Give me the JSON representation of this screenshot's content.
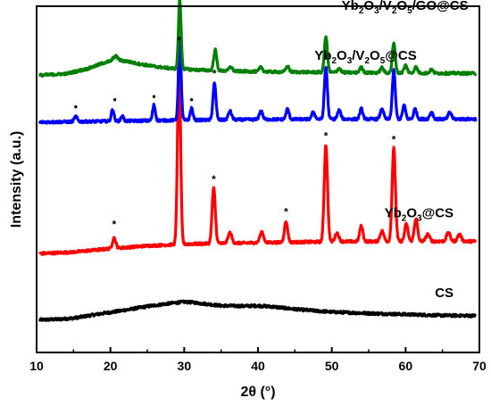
{
  "chart_data": {
    "type": "line",
    "xlabel": "2θ (°)",
    "ylabel": "Intensity (a.u.)",
    "xlim": [
      10,
      70
    ],
    "xticks": [
      "10",
      "20",
      "30",
      "40",
      "50",
      "60",
      "70"
    ],
    "ylim": [
      0,
      100
    ],
    "y_ticks_shown": false,
    "grid": false,
    "series": [
      {
        "name": "CS",
        "label_parts": [
          {
            "t": "CS"
          }
        ],
        "color": "#000000",
        "baseline": 10,
        "points": [
          [
            10,
            9.4
          ],
          [
            13,
            9.6
          ],
          [
            15,
            9.9
          ],
          [
            17,
            10.6
          ],
          [
            19,
            11.3
          ],
          [
            21,
            11.9
          ],
          [
            23,
            12.6
          ],
          [
            25,
            13.3
          ],
          [
            27,
            13.9
          ],
          [
            29,
            14.4
          ],
          [
            30,
            14.6
          ],
          [
            31,
            14.5
          ],
          [
            33,
            14.0
          ],
          [
            35,
            13.5
          ],
          [
            38,
            13.4
          ],
          [
            40,
            13.5
          ],
          [
            42,
            13.2
          ],
          [
            45,
            12.5
          ],
          [
            48,
            12.0
          ],
          [
            50,
            11.7
          ],
          [
            55,
            11.3
          ],
          [
            60,
            11.0
          ],
          [
            65,
            10.7
          ],
          [
            70,
            10.6
          ]
        ]
      },
      {
        "name": "Yb2O3@CS",
        "label_parts": [
          {
            "t": "Yb"
          },
          {
            "t": "2",
            "sub": true
          },
          {
            "t": "O"
          },
          {
            "t": "3",
            "sub": true
          },
          {
            "t": "@CS"
          }
        ],
        "color": "#ff0000",
        "baseline": 30.5,
        "bg_points": [
          [
            10,
            -2
          ],
          [
            15,
            -1.5
          ],
          [
            20,
            -0.5
          ],
          [
            25,
            0.3
          ],
          [
            30,
            0.8
          ],
          [
            40,
            1.2
          ],
          [
            50,
            1.5
          ],
          [
            60,
            1.6
          ],
          [
            70,
            1.6
          ]
        ],
        "peaks": [
          [
            20.5,
            3,
            0.22
          ],
          [
            29.3,
            56,
            0.2
          ],
          [
            34.0,
            16,
            0.22
          ],
          [
            36.2,
            3,
            0.25
          ],
          [
            40.5,
            3,
            0.25
          ],
          [
            43.8,
            6,
            0.22
          ],
          [
            49.2,
            28,
            0.22
          ],
          [
            50.7,
            2.5,
            0.25
          ],
          [
            54.0,
            4.5,
            0.22
          ],
          [
            56.8,
            3,
            0.25
          ],
          [
            58.4,
            27,
            0.22
          ],
          [
            60.1,
            5,
            0.22
          ],
          [
            61.4,
            6.5,
            0.22
          ],
          [
            63.0,
            2,
            0.25
          ],
          [
            65.8,
            2.5,
            0.25
          ],
          [
            67.3,
            2,
            0.25
          ]
        ]
      },
      {
        "name": "Yb2O3/V2O5@CS",
        "label_parts": [
          {
            "t": "Yb"
          },
          {
            "t": "2",
            "sub": true
          },
          {
            "t": "O"
          },
          {
            "t": "3",
            "sub": true
          },
          {
            "t": "/V"
          },
          {
            "t": "2",
            "sub": true
          },
          {
            "t": "O"
          },
          {
            "t": "5",
            "sub": true
          },
          {
            "t": "@CS"
          }
        ],
        "color": "#0000ff",
        "baseline": 66.5,
        "bg_points": [
          [
            10,
            0
          ],
          [
            20,
            0.3
          ],
          [
            30,
            0.6
          ],
          [
            40,
            0.8
          ],
          [
            50,
            0.9
          ],
          [
            60,
            0.9
          ],
          [
            70,
            0.9
          ]
        ],
        "peaks": [
          [
            15.3,
            1.5,
            0.2
          ],
          [
            20.3,
            3.5,
            0.18
          ],
          [
            21.6,
            1.5,
            0.18
          ],
          [
            25.9,
            4.5,
            0.18
          ],
          [
            29.4,
            24,
            0.18
          ],
          [
            31.0,
            3.5,
            0.18
          ],
          [
            34.1,
            10.5,
            0.2
          ],
          [
            36.2,
            2.5,
            0.22
          ],
          [
            40.4,
            2.5,
            0.22
          ],
          [
            44.0,
            3,
            0.2
          ],
          [
            47.5,
            2,
            0.22
          ],
          [
            49.2,
            15,
            0.2
          ],
          [
            51.0,
            2.5,
            0.22
          ],
          [
            54.0,
            3,
            0.2
          ],
          [
            56.8,
            3,
            0.22
          ],
          [
            58.4,
            14,
            0.2
          ],
          [
            59.8,
            4,
            0.2
          ],
          [
            61.3,
            3,
            0.2
          ],
          [
            63.5,
            2,
            0.22
          ],
          [
            66.0,
            2,
            0.22
          ]
        ]
      },
      {
        "name": "Yb2O3/V2O5/GO@CS",
        "label_parts": [
          {
            "t": "Yb"
          },
          {
            "t": "2",
            "sub": true
          },
          {
            "t": "O"
          },
          {
            "t": "3",
            "sub": true
          },
          {
            "t": "/V"
          },
          {
            "t": "2",
            "sub": true
          },
          {
            "t": "O"
          },
          {
            "t": "5",
            "sub": true
          },
          {
            "t": "/GO@CS"
          }
        ],
        "color": "#008000",
        "baseline": 80,
        "bg_points": [
          [
            10,
            0
          ],
          [
            14,
            0.5
          ],
          [
            17,
            2
          ],
          [
            19,
            3.6
          ],
          [
            20.5,
            4.4
          ],
          [
            22,
            4.2
          ],
          [
            24,
            3.3
          ],
          [
            26,
            2.6
          ],
          [
            28,
            2.1
          ],
          [
            32,
            1.6
          ],
          [
            36,
            1.3
          ],
          [
            40,
            1.1
          ],
          [
            50,
            0.9
          ],
          [
            60,
            0.7
          ],
          [
            70,
            0.6
          ]
        ],
        "peaks": [
          [
            20.7,
            1.2,
            0.3
          ],
          [
            29.4,
            20,
            0.18
          ],
          [
            34.2,
            6,
            0.2
          ],
          [
            36.3,
            1.2,
            0.22
          ],
          [
            40.4,
            1.3,
            0.22
          ],
          [
            44.0,
            1.6,
            0.22
          ],
          [
            49.2,
            10.5,
            0.2
          ],
          [
            51.0,
            1.2,
            0.22
          ],
          [
            54.0,
            1.5,
            0.22
          ],
          [
            56.8,
            1.5,
            0.22
          ],
          [
            58.4,
            8.5,
            0.2
          ],
          [
            60.0,
            2.2,
            0.22
          ],
          [
            61.4,
            1.7,
            0.22
          ],
          [
            63.5,
            1,
            0.22
          ]
        ]
      }
    ],
    "annotations": [
      {
        "marker": "*",
        "x": 20.5,
        "y": 36
      },
      {
        "marker": "*",
        "x": 29.3,
        "y": 89
      },
      {
        "marker": "*",
        "x": 34.0,
        "y": 49
      },
      {
        "marker": "*",
        "x": 43.8,
        "y": 39.5
      },
      {
        "marker": "*",
        "x": 49.2,
        "y": 61.5
      },
      {
        "marker": "*",
        "x": 58.4,
        "y": 60.5
      },
      {
        "marker": "•",
        "x": 15.3,
        "y": 70
      },
      {
        "marker": "•",
        "x": 20.6,
        "y": 72
      },
      {
        "marker": "•",
        "x": 25.9,
        "y": 73
      },
      {
        "marker": "•",
        "x": 31.0,
        "y": 72
      },
      {
        "marker": "*",
        "x": 34.1,
        "y": 79.5
      },
      {
        "marker": "*",
        "x": 49.2,
        "y": 84
      }
    ],
    "series_label_positions": [
      {
        "x": 66.5,
        "y": 16
      },
      {
        "x": 66.5,
        "y": 39
      },
      {
        "x": 61.5,
        "y": 84.5
      },
      {
        "x": 68.5,
        "y": 99
      }
    ]
  }
}
